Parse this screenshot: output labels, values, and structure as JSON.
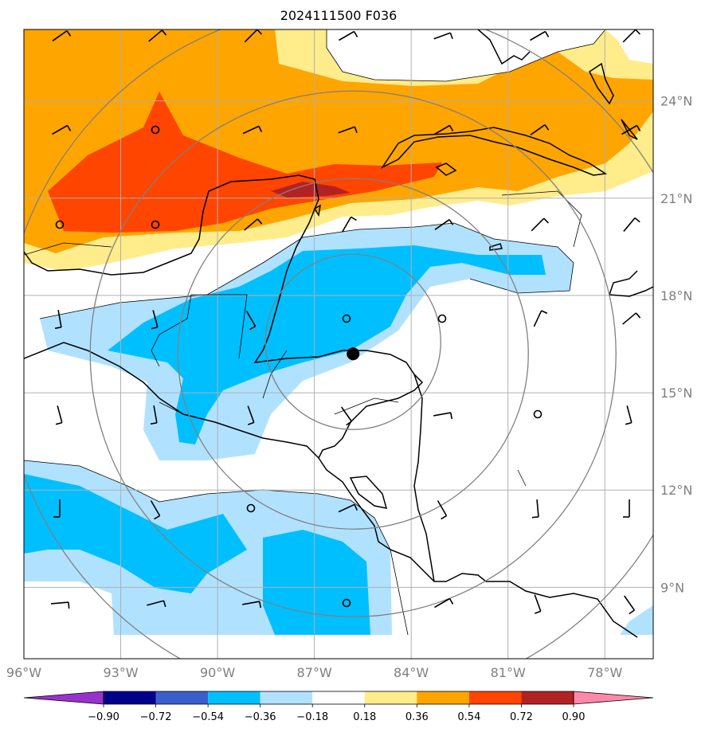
{
  "title": "2024111500 F036",
  "map": {
    "lon_range": [
      -96,
      -76.5
    ],
    "lat_range": [
      6.8,
      26.2
    ],
    "lon_ticks": [
      {
        "value": -96,
        "label": "96°W"
      },
      {
        "value": -93,
        "label": "93°W"
      },
      {
        "value": -90,
        "label": "90°W"
      },
      {
        "value": -87,
        "label": "87°W"
      },
      {
        "value": -84,
        "label": "84°W"
      },
      {
        "value": -81,
        "label": "81°W"
      },
      {
        "value": -78,
        "label": "78°W"
      }
    ],
    "lat_ticks": [
      {
        "value": 24,
        "label": "24°N"
      },
      {
        "value": 21,
        "label": "21°N"
      },
      {
        "value": 18,
        "label": "18°N"
      },
      {
        "value": 15,
        "label": "15°N"
      },
      {
        "value": 12,
        "label": "12°N"
      },
      {
        "value": 9,
        "label": "9°N"
      }
    ],
    "grid": true,
    "storm_center": {
      "lon": -85.8,
      "lat": 16.2
    },
    "range_rings_center": {
      "lon": -85.8,
      "lat": 16.2
    },
    "colors": {
      "grid": "#b0b0b0",
      "rings": "#808080",
      "coast": "#000000"
    }
  },
  "colorbar": {
    "levels": [
      "−0.90",
      "−0.72",
      "−0.54",
      "−0.36",
      "−0.18",
      "0.18",
      "0.36",
      "0.54",
      "0.72",
      "0.90"
    ],
    "colors": [
      "#9932cc",
      "#00008b",
      "#3a5fcd",
      "#00bfff",
      "#b0e2ff",
      "#ffffff",
      "#ffec8b",
      "#ffa500",
      "#ff4500",
      "#b22222",
      "#ff88aa"
    ]
  }
}
